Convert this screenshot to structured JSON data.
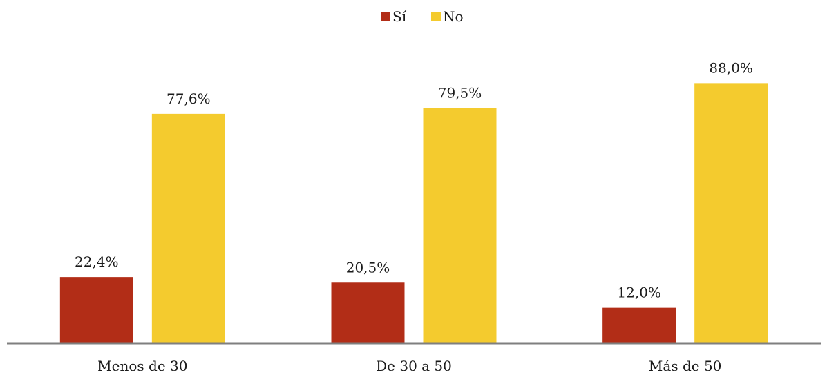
{
  "chart_data": {
    "type": "bar",
    "title": "",
    "xlabel": "",
    "ylabel": "",
    "categories": [
      "Menos de 30",
      "De 30 a 50",
      "Más de 50"
    ],
    "series": [
      {
        "name": "Sí",
        "color": "#b22d17",
        "values": [
          22.4,
          20.5,
          12.0
        ],
        "labels": [
          "22,4%",
          "20,5%",
          "12,0%"
        ]
      },
      {
        "name": "No",
        "color": "#f4cb2e",
        "values": [
          77.6,
          79.5,
          88.0
        ],
        "labels": [
          "77,6%",
          "79,5%",
          "88,0%"
        ]
      }
    ],
    "ylim": [
      0,
      100
    ],
    "grid": false,
    "legend_position": "top-center",
    "axis_color": "#7f7f7f"
  }
}
